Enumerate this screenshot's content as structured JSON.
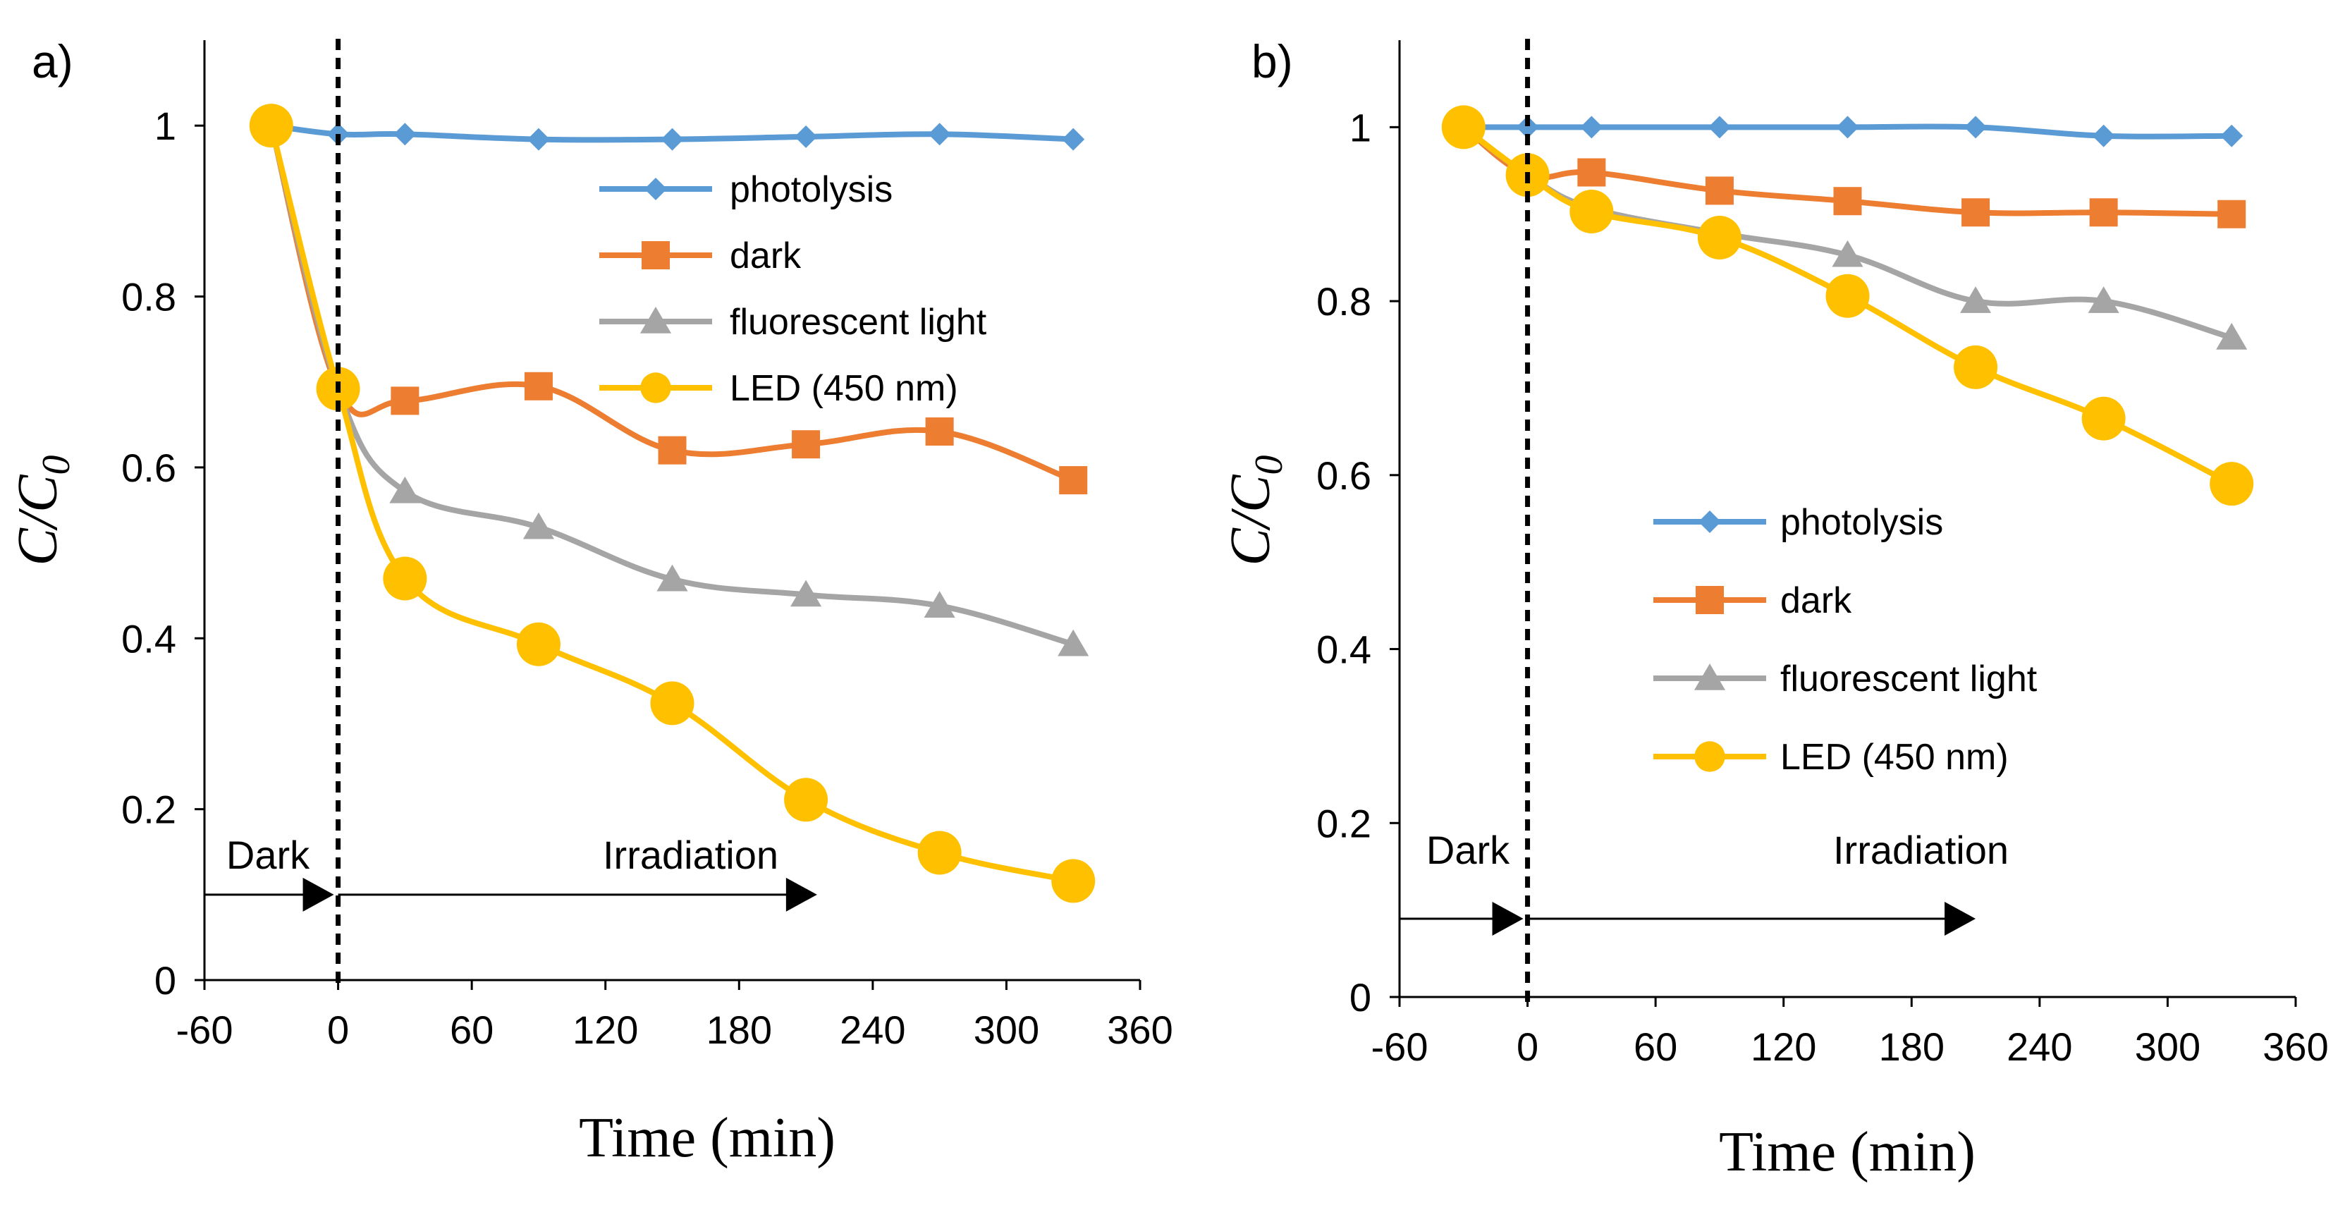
{
  "colors": {
    "photolysis": "#5B9BD5",
    "dark": "#ED7D31",
    "fluorescent": "#A5A5A5",
    "led": "#FFC000",
    "axis": "#000000"
  },
  "chart_data": [
    {
      "type": "line",
      "panel_label": "a)",
      "xlabel": "Time (min)",
      "ylabel_main": "C/C",
      "ylabel_sub": "0",
      "xlim": [
        -60,
        360
      ],
      "ylim": [
        0,
        1.1
      ],
      "x_ticks": [
        -60,
        0,
        60,
        120,
        180,
        240,
        300,
        360
      ],
      "x_tick_labels": [
        "-60",
        "0",
        "60",
        "120",
        "180",
        "240",
        "300",
        "360"
      ],
      "y_ticks": [
        0,
        0.2,
        0.4,
        0.6,
        0.8,
        1
      ],
      "y_tick_labels": [
        "0",
        "0.2",
        "0.4",
        "0.6",
        "0.8",
        "1"
      ],
      "legend_position": "top-right",
      "divider_x": 0,
      "dark_text": "Dark",
      "irradiation_text": "Irradiation",
      "dark_arrow": {
        "from_x": -60,
        "to_x": 0,
        "y": 0.1
      },
      "irr_arrow": {
        "from_x": 0,
        "to_x": 215,
        "y": 0.1
      },
      "series": [
        {
          "name": "photolysis",
          "marker": "diamond",
          "color_key": "photolysis",
          "x": [
            -30,
            0,
            30,
            90,
            150,
            210,
            270,
            330
          ],
          "y": [
            1.0,
            0.99,
            0.99,
            0.984,
            0.984,
            0.987,
            0.99,
            0.984
          ]
        },
        {
          "name": "dark",
          "marker": "square",
          "color_key": "dark",
          "x": [
            -30,
            0,
            30,
            90,
            150,
            210,
            270,
            330
          ],
          "y": [
            1.0,
            0.692,
            0.678,
            0.695,
            0.62,
            0.627,
            0.642,
            0.585
          ]
        },
        {
          "name": "fluorescent light",
          "marker": "triangle",
          "color_key": "fluorescent",
          "x": [
            -30,
            0,
            30,
            90,
            150,
            210,
            270,
            330
          ],
          "y": [
            1.0,
            0.692,
            0.572,
            0.53,
            0.469,
            0.451,
            0.438,
            0.393
          ]
        },
        {
          "name": "LED (450 nm)",
          "marker": "circle",
          "color_key": "led",
          "x": [
            -30,
            0,
            30,
            90,
            150,
            210,
            270,
            330
          ],
          "y": [
            1.0,
            0.692,
            0.47,
            0.393,
            0.324,
            0.211,
            0.149,
            0.116
          ]
        }
      ]
    },
    {
      "type": "line",
      "panel_label": "b)",
      "xlabel": "Time (min)",
      "ylabel_main": "C/C",
      "ylabel_sub": "0",
      "xlim": [
        -60,
        360
      ],
      "ylim": [
        0,
        1.1
      ],
      "x_ticks": [
        -60,
        0,
        60,
        120,
        180,
        240,
        300,
        360
      ],
      "x_tick_labels": [
        "-60",
        "0",
        "60",
        "120",
        "180",
        "240",
        "300",
        "360"
      ],
      "y_ticks": [
        0,
        0.2,
        0.4,
        0.6,
        0.8,
        1
      ],
      "y_tick_labels": [
        "0",
        "0.2",
        "0.4",
        "0.6",
        "0.8",
        "1"
      ],
      "legend_position": "center",
      "divider_x": 0,
      "dark_text": "Dark",
      "irradiation_text": "Irradiation",
      "dark_arrow": {
        "from_x": -60,
        "to_x": 0,
        "y": 0.09
      },
      "irr_arrow": {
        "from_x": 0,
        "to_x": 210,
        "y": 0.09
      },
      "series": [
        {
          "name": "photolysis",
          "marker": "diamond",
          "color_key": "photolysis",
          "x": [
            -30,
            0,
            30,
            90,
            150,
            210,
            270,
            330
          ],
          "y": [
            1.0,
            1.0,
            1.0,
            1.0,
            1.0,
            1.0,
            0.99,
            0.99
          ]
        },
        {
          "name": "dark",
          "marker": "square",
          "color_key": "dark",
          "x": [
            -30,
            0,
            30,
            90,
            150,
            210,
            270,
            330
          ],
          "y": [
            1.0,
            0.945,
            0.948,
            0.927,
            0.915,
            0.902,
            0.902,
            0.9
          ]
        },
        {
          "name": "fluorescent light",
          "marker": "triangle",
          "color_key": "fluorescent",
          "x": [
            -30,
            0,
            30,
            90,
            150,
            210,
            270,
            330
          ],
          "y": [
            1.0,
            0.945,
            0.907,
            0.878,
            0.853,
            0.8,
            0.8,
            0.758
          ]
        },
        {
          "name": "LED (450 nm)",
          "marker": "circle",
          "color_key": "led",
          "x": [
            -30,
            0,
            30,
            90,
            150,
            210,
            270,
            330
          ],
          "y": [
            1.0,
            0.945,
            0.903,
            0.873,
            0.806,
            0.724,
            0.665,
            0.59
          ]
        }
      ]
    }
  ]
}
